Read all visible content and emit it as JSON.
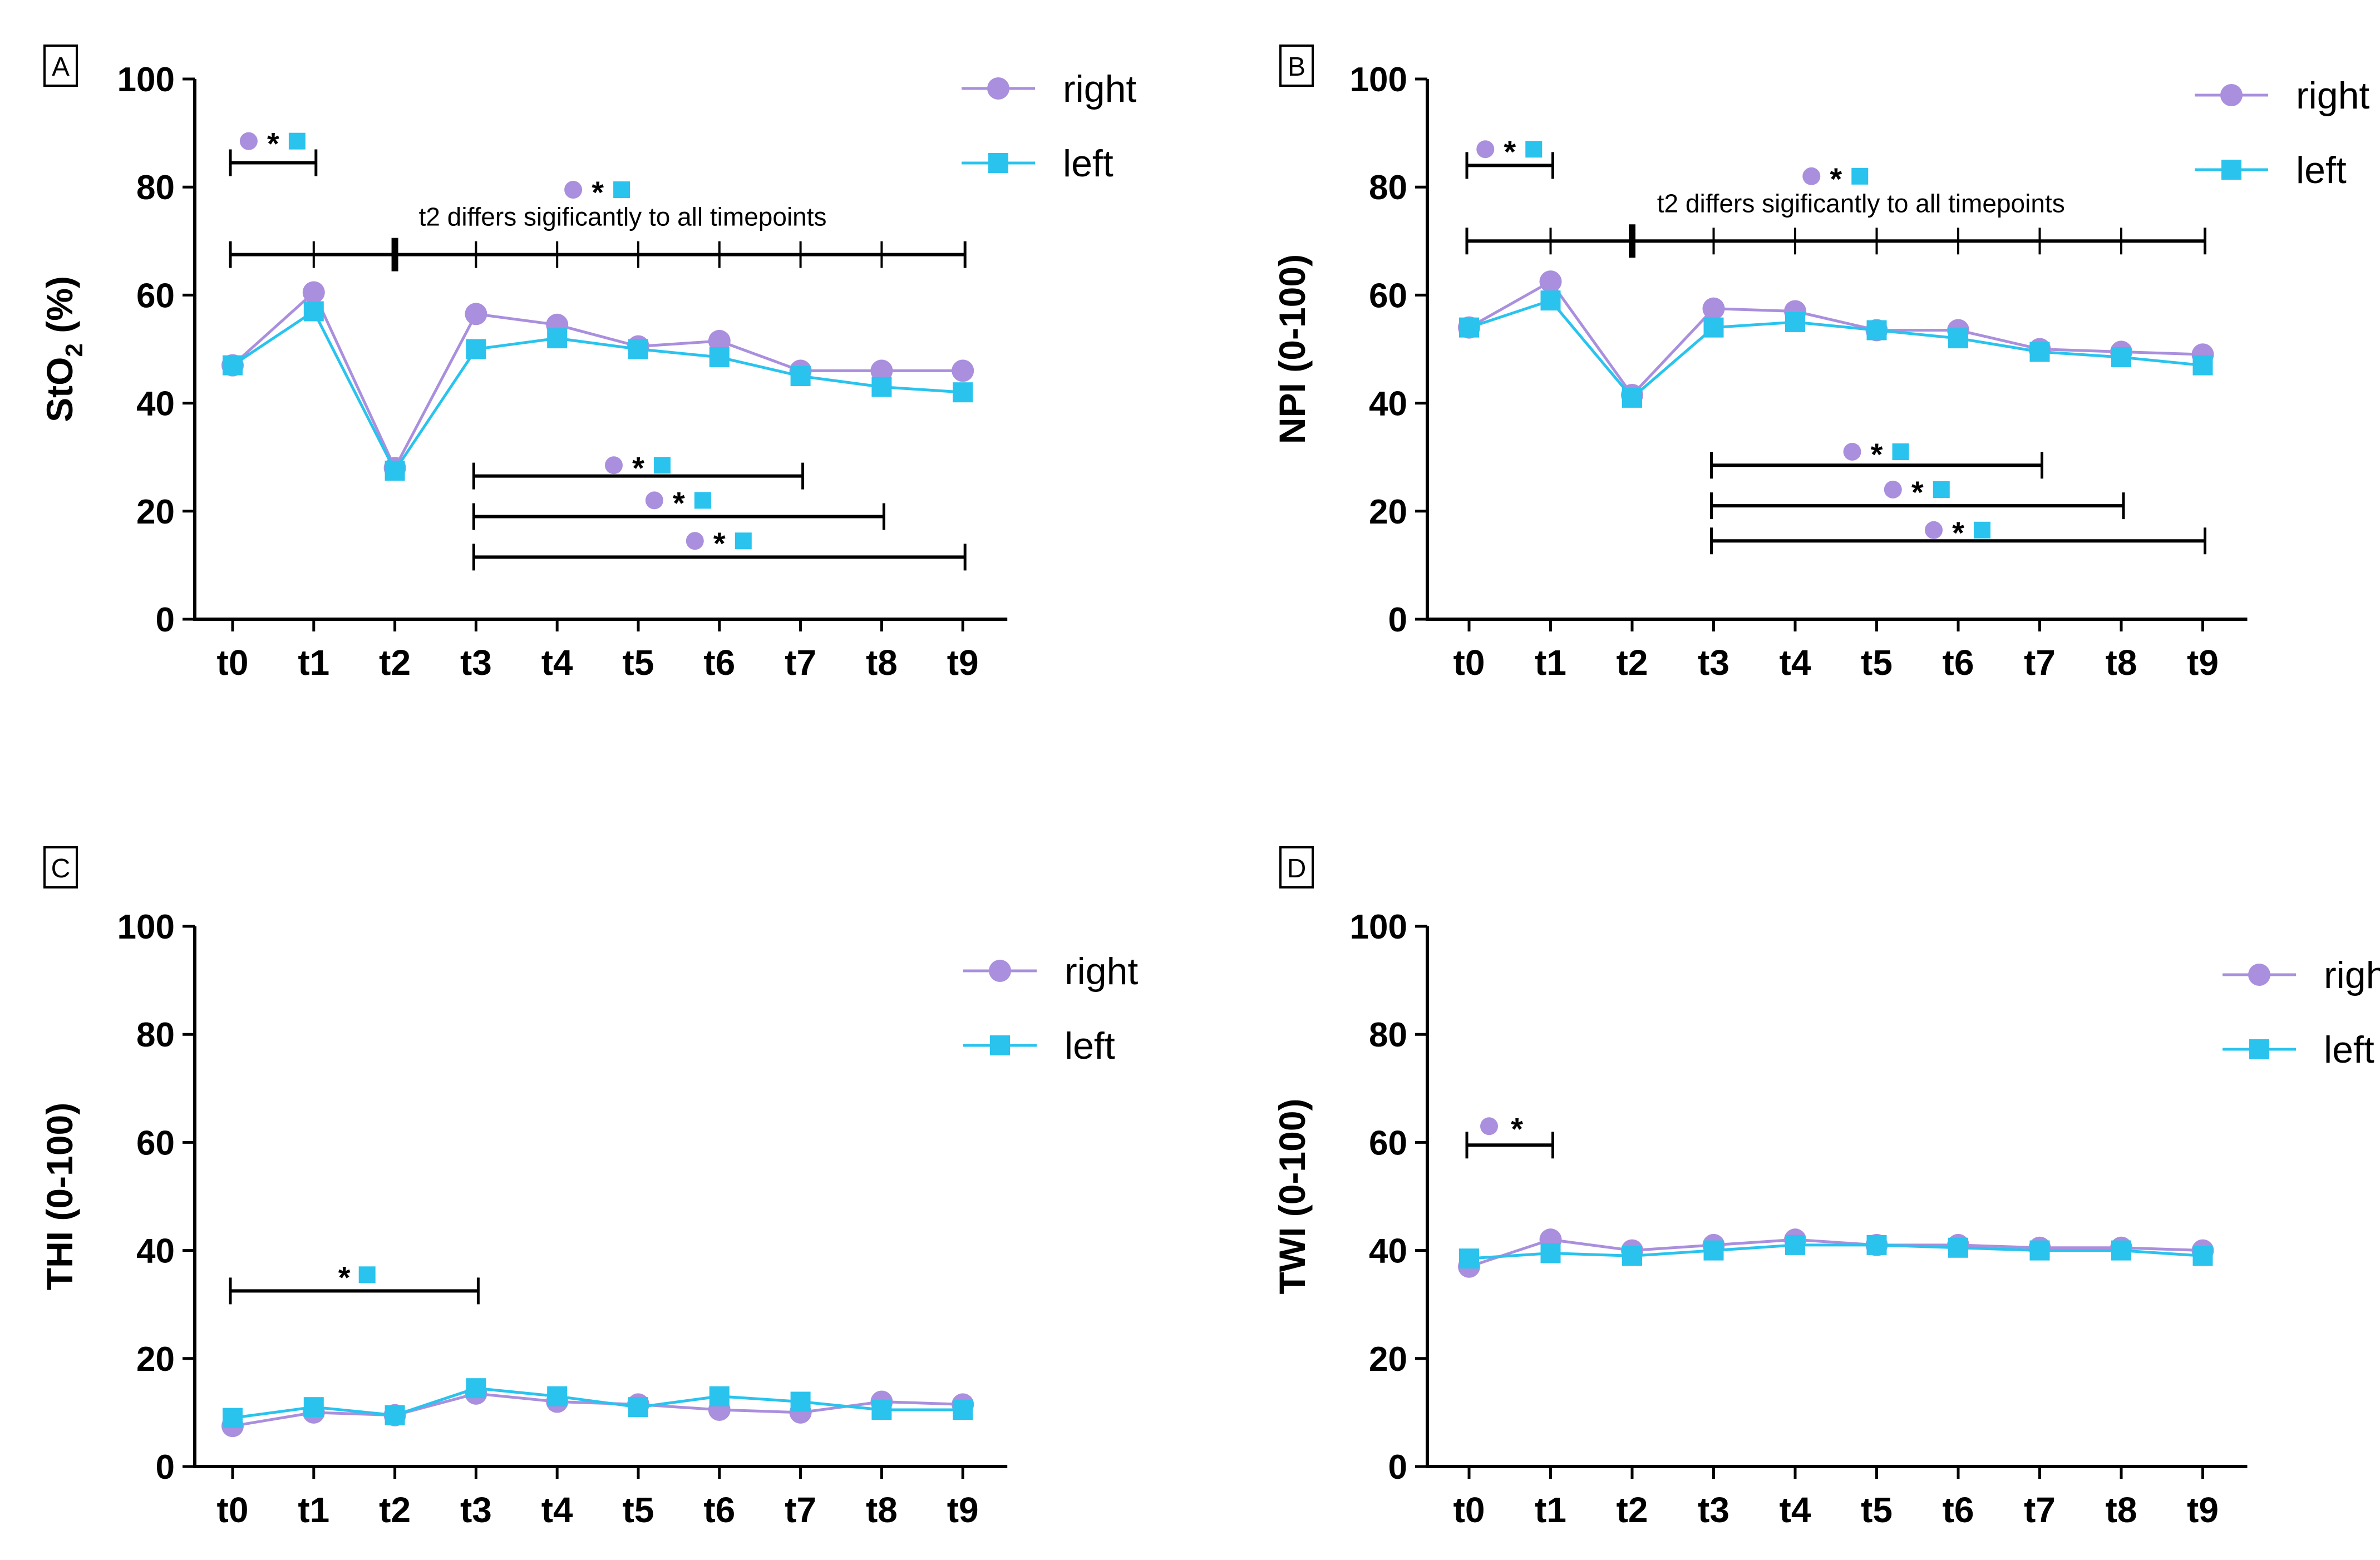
{
  "colors": {
    "right": "#a98fdd",
    "left": "#29c3ee",
    "axis": "#000000"
  },
  "legend": {
    "right": "right",
    "left": "left"
  },
  "chart_data": [
    {
      "panel": "A",
      "type": "line",
      "categories": [
        "t0",
        "t1",
        "t2",
        "t3",
        "t4",
        "t5",
        "t6",
        "t7",
        "t8",
        "t9"
      ],
      "ylabel": "StO",
      "ylabel_sub": "2",
      "ylabel_tail": " (%)",
      "ylim": [
        0,
        100
      ],
      "yticks": [
        "0",
        "20",
        "40",
        "60",
        "80",
        "100"
      ],
      "series": [
        {
          "name": "right",
          "values": [
            47,
            60.5,
            28,
            56.5,
            54.5,
            50.5,
            51.5,
            46,
            46,
            46
          ]
        },
        {
          "name": "left",
          "values": [
            47,
            57,
            27.5,
            50,
            52,
            50,
            48.5,
            45,
            43,
            42
          ]
        }
      ],
      "note": "t2 differs sigificantly to all timepoints",
      "brackets": [
        {
          "from": 0,
          "to": 1,
          "y": 84.5,
          "marker_y": 88.5,
          "markers": [
            "right",
            "left"
          ]
        },
        {
          "from": 0,
          "to": 9,
          "y": 67.5,
          "marker_y": 79.5,
          "markers": [
            "right",
            "left"
          ],
          "ticks": true,
          "bold_at": 2
        },
        {
          "from": 3,
          "to": 7,
          "y": 26.5,
          "marker_y": 28.5,
          "markers": [
            "right",
            "left"
          ]
        },
        {
          "from": 3,
          "to": 8,
          "y": 19,
          "marker_y": 22,
          "markers": [
            "right",
            "left"
          ]
        },
        {
          "from": 3,
          "to": 9,
          "y": 11.5,
          "marker_y": 14.5,
          "markers": [
            "right",
            "left"
          ]
        }
      ]
    },
    {
      "panel": "B",
      "type": "line",
      "categories": [
        "t0",
        "t1",
        "t2",
        "t3",
        "t4",
        "t5",
        "t6",
        "t7",
        "t8",
        "t9"
      ],
      "ylabel": "NPI",
      "ylabel_sub": "",
      "ylabel_tail": " (0-100)",
      "ylim": [
        0,
        100
      ],
      "yticks": [
        "0",
        "20",
        "40",
        "60",
        "80",
        "100"
      ],
      "series": [
        {
          "name": "right",
          "values": [
            54,
            62.5,
            41.5,
            57.5,
            57,
            53.5,
            53.5,
            50,
            49.5,
            49
          ]
        },
        {
          "name": "left",
          "values": [
            54,
            59,
            41,
            54,
            55,
            53.5,
            52,
            49.5,
            48.5,
            47
          ]
        }
      ],
      "note": "t2 differs sigificantly to all timepoints",
      "brackets": [
        {
          "from": 0,
          "to": 1,
          "y": 84,
          "marker_y": 87,
          "markers": [
            "right",
            "left"
          ]
        },
        {
          "from": 0,
          "to": 9,
          "y": 70,
          "marker_y": 82,
          "markers": [
            "right",
            "left"
          ],
          "ticks": true,
          "bold_at": 2
        },
        {
          "from": 3,
          "to": 7,
          "y": 28.5,
          "marker_y": 31,
          "markers": [
            "right",
            "left"
          ]
        },
        {
          "from": 3,
          "to": 8,
          "y": 21,
          "marker_y": 24,
          "markers": [
            "right",
            "left"
          ]
        },
        {
          "from": 3,
          "to": 9,
          "y": 14.5,
          "marker_y": 16.5,
          "markers": [
            "right",
            "left"
          ]
        }
      ]
    },
    {
      "panel": "C",
      "type": "line",
      "categories": [
        "t0",
        "t1",
        "t2",
        "t3",
        "t4",
        "t5",
        "t6",
        "t7",
        "t8",
        "t9"
      ],
      "ylabel": "THI",
      "ylabel_sub": "",
      "ylabel_tail": " (0-100)",
      "ylim": [
        0,
        100
      ],
      "yticks": [
        "0",
        "20",
        "40",
        "60",
        "80",
        "100"
      ],
      "series": [
        {
          "name": "right",
          "values": [
            7.5,
            10,
            9.5,
            13.5,
            12,
            11.5,
            10.5,
            10,
            12,
            11.5
          ]
        },
        {
          "name": "left",
          "values": [
            9,
            11,
            9.5,
            14.5,
            13,
            11,
            13,
            12,
            10.5,
            10.5
          ]
        }
      ],
      "note": "",
      "brackets": [
        {
          "from": 0,
          "to": 3,
          "y": 32.5,
          "marker_y": 35.5,
          "markers": [
            "left"
          ]
        }
      ]
    },
    {
      "panel": "D",
      "type": "line",
      "categories": [
        "t0",
        "t1",
        "t2",
        "t3",
        "t4",
        "t5",
        "t6",
        "t7",
        "t8",
        "t9"
      ],
      "ylabel": "TWI",
      "ylabel_sub": "",
      "ylabel_tail": " (0-100)",
      "ylim": [
        0,
        100
      ],
      "yticks": [
        "0",
        "20",
        "40",
        "60",
        "80",
        "100"
      ],
      "series": [
        {
          "name": "right",
          "values": [
            37,
            42,
            40,
            41,
            42,
            41,
            41,
            40.5,
            40.5,
            40
          ]
        },
        {
          "name": "left",
          "values": [
            38.5,
            39.5,
            39,
            40,
            41,
            41,
            40.5,
            40,
            40,
            39
          ]
        }
      ],
      "note": "",
      "brackets": [
        {
          "from": 0,
          "to": 1,
          "y": 59.5,
          "marker_y": 63,
          "markers": [
            "right"
          ]
        }
      ]
    }
  ]
}
